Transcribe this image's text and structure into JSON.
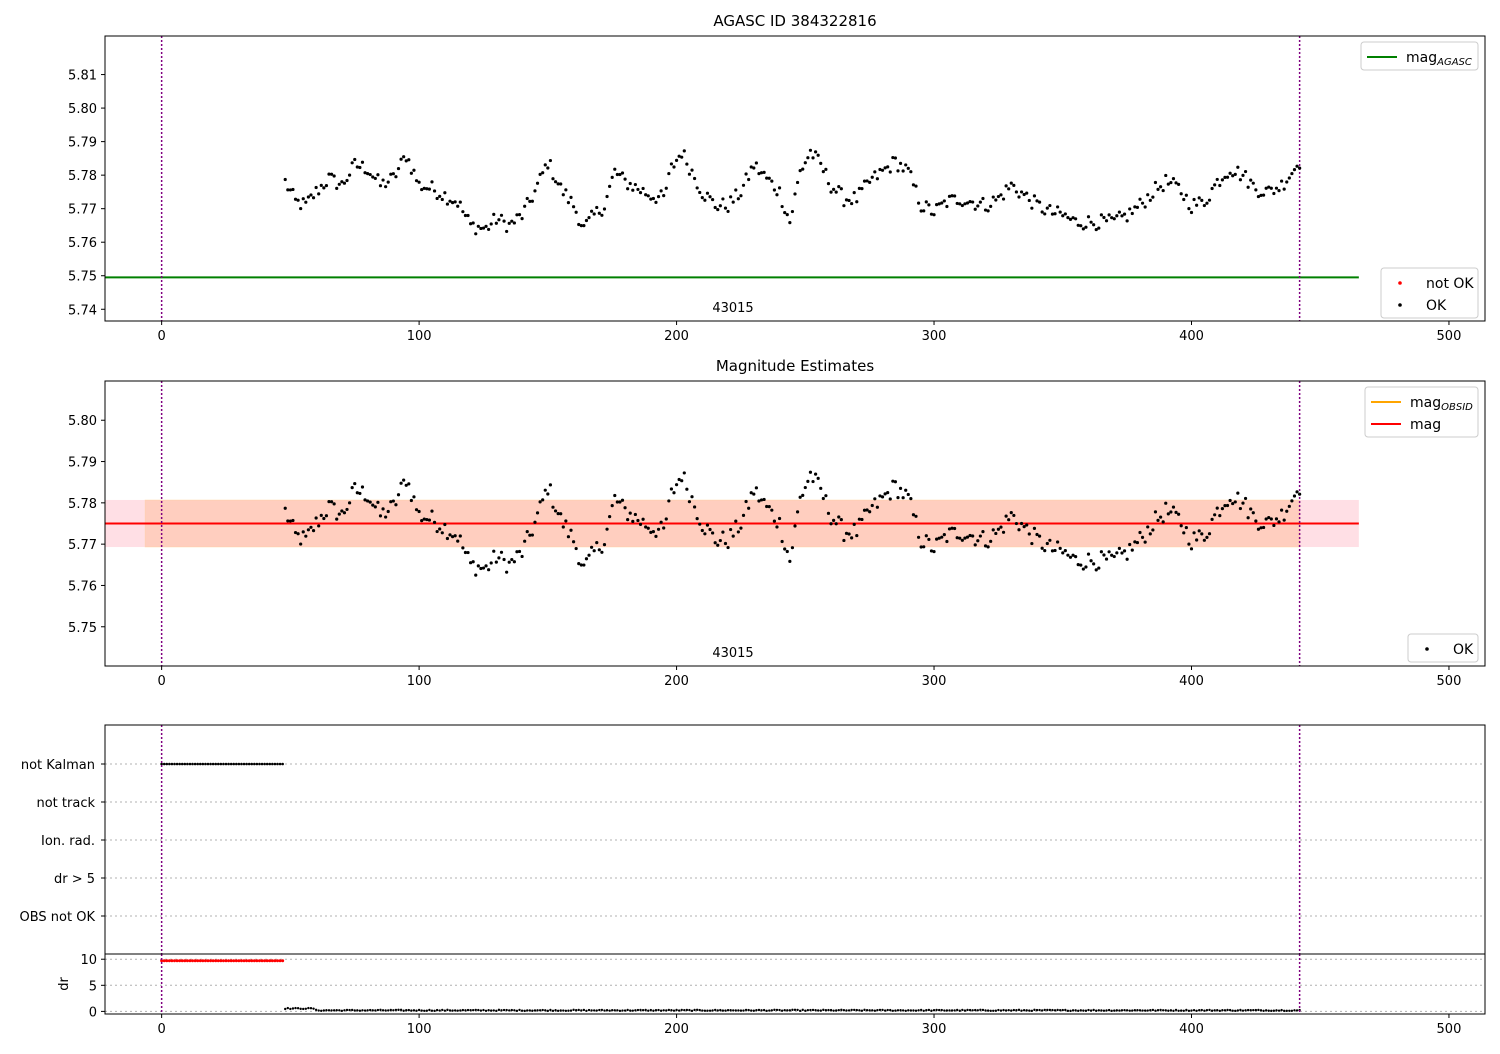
{
  "figure": {
    "top_title": "AGASC ID 384322816",
    "middle_title": "Magnitude Estimates",
    "obsid_label": "43015",
    "middle_obsid_label": "43015"
  },
  "colors": {
    "ok_points": "#000000",
    "not_ok_points": "#ff0000",
    "mag_agasc_line": "#008000",
    "mag_obsid_line": "#ffa500",
    "mag_line": "#ff0000",
    "band_fill": "#ffc0cb",
    "band_inner_fill": "#ffb07a",
    "obs_boundary": "#800080",
    "grid": "#b0b0b0"
  },
  "legends": {
    "top_upper": [
      {
        "label": "mag",
        "sub": "AGASC",
        "kind": "line",
        "color": "#008000"
      }
    ],
    "top_lower": [
      {
        "label": "not OK",
        "kind": "dot",
        "color": "#ff0000"
      },
      {
        "label": "OK",
        "kind": "dot",
        "color": "#000000"
      }
    ],
    "middle_upper": [
      {
        "label": "mag",
        "sub": "OBSID",
        "kind": "line",
        "color": "#ffa500"
      },
      {
        "label": "mag",
        "sub": "",
        "kind": "line",
        "color": "#ff0000"
      }
    ],
    "middle_lower": [
      {
        "label": "OK",
        "kind": "dot",
        "color": "#000000"
      }
    ]
  },
  "chart_data": [
    {
      "type": "scatter",
      "title": "AGASC ID 384322816",
      "xlim": [
        -22,
        514
      ],
      "ylim": [
        5.7365,
        5.8215
      ],
      "xticks": [
        0,
        100,
        200,
        300,
        400,
        500
      ],
      "yticks": [
        5.74,
        5.75,
        5.76,
        5.77,
        5.78,
        5.79,
        5.8,
        5.81
      ],
      "mag_agasc": 5.7495,
      "mag_agasc_x_range": [
        -22,
        465
      ],
      "obs_boundaries_x": [
        0,
        442
      ],
      "series": [
        {
          "name": "OK",
          "x_range": [
            48,
            442
          ],
          "anchors": [
            [
              48,
              5.778
            ],
            [
              52,
              5.772
            ],
            [
              56,
              5.771
            ],
            [
              60,
              5.775
            ],
            [
              65,
              5.779
            ],
            [
              70,
              5.777
            ],
            [
              75,
              5.783
            ],
            [
              80,
              5.782
            ],
            [
              85,
              5.777
            ],
            [
              90,
              5.779
            ],
            [
              95,
              5.786
            ],
            [
              100,
              5.777
            ],
            [
              105,
              5.776
            ],
            [
              110,
              5.774
            ],
            [
              115,
              5.772
            ],
            [
              120,
              5.765
            ],
            [
              126,
              5.764
            ],
            [
              130,
              5.767
            ],
            [
              135,
              5.765
            ],
            [
              140,
              5.768
            ],
            [
              145,
              5.775
            ],
            [
              150,
              5.784
            ],
            [
              155,
              5.776
            ],
            [
              160,
              5.771
            ],
            [
              164,
              5.764
            ],
            [
              168,
              5.768
            ],
            [
              172,
              5.771
            ],
            [
              176,
              5.781
            ],
            [
              180,
              5.778
            ],
            [
              185,
              5.776
            ],
            [
              190,
              5.774
            ],
            [
              195,
              5.773
            ],
            [
              198,
              5.782
            ],
            [
              202,
              5.787
            ],
            [
              206,
              5.781
            ],
            [
              210,
              5.775
            ],
            [
              215,
              5.771
            ],
            [
              220,
              5.771
            ],
            [
              225,
              5.775
            ],
            [
              230,
              5.783
            ],
            [
              235,
              5.779
            ],
            [
              240,
              5.775
            ],
            [
              244,
              5.766
            ],
            [
              248,
              5.781
            ],
            [
              252,
              5.787
            ],
            [
              256,
              5.783
            ],
            [
              260,
              5.777
            ],
            [
              265,
              5.773
            ],
            [
              270,
              5.773
            ],
            [
              275,
              5.778
            ],
            [
              280,
              5.781
            ],
            [
              285,
              5.784
            ],
            [
              290,
              5.781
            ],
            [
              295,
              5.771
            ],
            [
              300,
              5.769
            ],
            [
              305,
              5.772
            ],
            [
              310,
              5.773
            ],
            [
              315,
              5.772
            ],
            [
              320,
              5.771
            ],
            [
              325,
              5.773
            ],
            [
              330,
              5.777
            ],
            [
              335,
              5.774
            ],
            [
              340,
              5.771
            ],
            [
              345,
              5.769
            ],
            [
              350,
              5.768
            ],
            [
              355,
              5.766
            ],
            [
              360,
              5.766
            ],
            [
              365,
              5.766
            ],
            [
              370,
              5.766
            ],
            [
              375,
              5.768
            ],
            [
              380,
              5.771
            ],
            [
              385,
              5.775
            ],
            [
              390,
              5.778
            ],
            [
              395,
              5.776
            ],
            [
              400,
              5.771
            ],
            [
              405,
              5.772
            ],
            [
              410,
              5.778
            ],
            [
              415,
              5.782
            ],
            [
              420,
              5.78
            ],
            [
              425,
              5.776
            ],
            [
              430,
              5.775
            ],
            [
              435,
              5.777
            ],
            [
              440,
              5.782
            ],
            [
              442,
              5.784
            ]
          ]
        },
        {
          "name": "not OK",
          "values": []
        }
      ]
    },
    {
      "type": "scatter",
      "title": "Magnitude Estimates",
      "xlim": [
        -22,
        514
      ],
      "ylim": [
        5.7405,
        5.8095
      ],
      "xticks": [
        0,
        100,
        200,
        300,
        400,
        500
      ],
      "yticks": [
        5.75,
        5.76,
        5.77,
        5.78,
        5.79,
        5.8
      ],
      "mag": 5.775,
      "mag_band": [
        5.7693,
        5.7807
      ],
      "band_x_range": [
        -22,
        465
      ],
      "inner_band_x_range": [
        48,
        442
      ],
      "obs_boundaries_x": [
        0,
        442
      ],
      "series": [
        {
          "name": "OK",
          "same_as": "top"
        }
      ]
    },
    {
      "type": "scatter",
      "xlim": [
        -22,
        514
      ],
      "categories": [
        "not Kalman",
        "not track",
        "Ion. rad.",
        "dr > 5",
        "OBS not OK"
      ],
      "flagged_x_range": {
        "not Kalman": [
          0,
          47
        ]
      },
      "dr": {
        "ylabel": "dr",
        "ylim": [
          -0.5,
          11
        ],
        "yticks": [
          0,
          5,
          10
        ],
        "not_ok_x_range": [
          0,
          47
        ],
        "not_ok_value": 9.7,
        "ok_x_range": [
          48,
          442
        ],
        "ok_value_range": [
          0.05,
          0.6
        ]
      }
    }
  ]
}
